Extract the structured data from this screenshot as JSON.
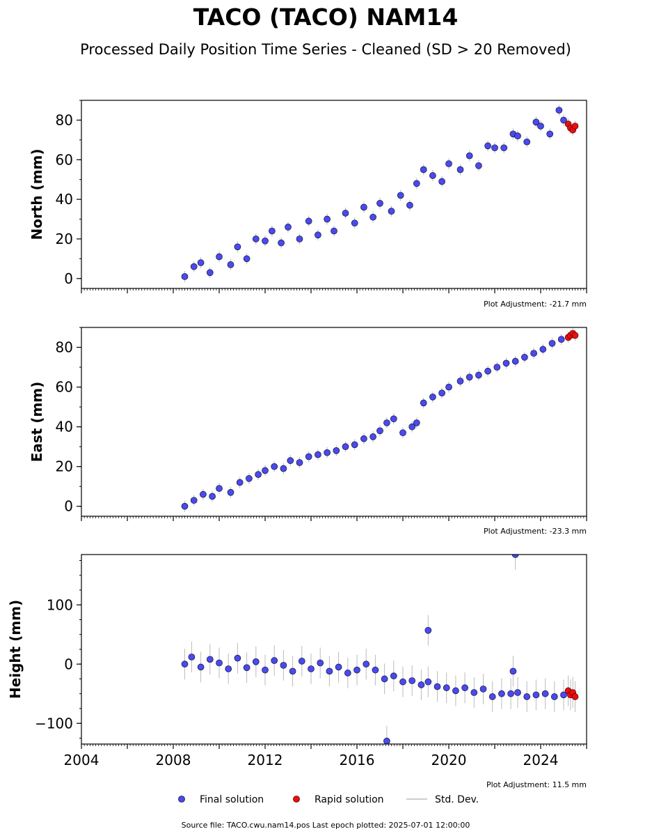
{
  "title": "TACO (TACO) NAM14",
  "subtitle": "Processed Daily Position Time Series - Cleaned (SD > 20 Removed)",
  "source_line": "Source file: TACO.cwu.nam14.pos  Last epoch plotted: 2025-07-01 12:00:00",
  "legend": {
    "final": "Final solution",
    "rapid": "Rapid solution",
    "std": "Std. Dev."
  },
  "colors": {
    "final": "#4a4aef",
    "final_edge": "#111133",
    "rapid": "#e81010",
    "std": "#bbbbbb"
  },
  "chart_data": [
    {
      "type": "scatter",
      "ylabel": "North (mm)",
      "xlim": [
        2004.0,
        2026.0
      ],
      "ylim": [
        -5,
        90
      ],
      "yticks": [
        0,
        20,
        40,
        60,
        80
      ],
      "x_tick_labels_shown": false,
      "adjustment_label": "Plot Adjustment: -21.7 mm",
      "series": [
        {
          "name": "Final solution",
          "x": [
            2008.5,
            2008.9,
            2009.2,
            2009.6,
            2010.0,
            2010.5,
            2010.8,
            2011.2,
            2011.6,
            2012.0,
            2012.3,
            2012.7,
            2013.0,
            2013.5,
            2013.9,
            2014.3,
            2014.7,
            2015.0,
            2015.5,
            2015.9,
            2016.3,
            2016.7,
            2017.0,
            2017.5,
            2017.9,
            2018.3,
            2018.6,
            2018.9,
            2019.3,
            2019.7,
            2020.0,
            2020.5,
            2020.9,
            2021.3,
            2021.7,
            2022.0,
            2022.4,
            2022.8,
            2023.0,
            2023.4,
            2023.8,
            2024.0,
            2024.4,
            2024.8,
            2025.0
          ],
          "y": [
            1,
            6,
            8,
            3,
            11,
            7,
            16,
            10,
            20,
            19,
            24,
            18,
            26,
            20,
            29,
            22,
            30,
            24,
            33,
            28,
            36,
            31,
            38,
            34,
            42,
            37,
            48,
            55,
            52,
            49,
            58,
            55,
            62,
            57,
            67,
            66,
            66,
            73,
            72,
            69,
            79,
            77,
            73,
            85,
            80
          ]
        },
        {
          "name": "Rapid solution",
          "x": [
            2025.2,
            2025.3,
            2025.4,
            2025.5
          ],
          "y": [
            78,
            76,
            75,
            77
          ]
        }
      ]
    },
    {
      "type": "scatter",
      "ylabel": "East (mm)",
      "xlim": [
        2004.0,
        2026.0
      ],
      "ylim": [
        -5,
        90
      ],
      "yticks": [
        0,
        20,
        40,
        60,
        80
      ],
      "x_tick_labels_shown": false,
      "adjustment_label": "Plot Adjustment: -23.3 mm",
      "series": [
        {
          "name": "Final solution",
          "x": [
            2008.5,
            2008.9,
            2009.3,
            2009.7,
            2010.0,
            2010.5,
            2010.9,
            2011.3,
            2011.7,
            2012.0,
            2012.4,
            2012.8,
            2013.1,
            2013.5,
            2013.9,
            2014.3,
            2014.7,
            2015.1,
            2015.5,
            2015.9,
            2016.3,
            2016.7,
            2017.0,
            2017.3,
            2017.6,
            2018.0,
            2018.4,
            2018.6,
            2018.9,
            2019.3,
            2019.7,
            2020.0,
            2020.5,
            2020.9,
            2021.3,
            2021.7,
            2022.1,
            2022.5,
            2022.9,
            2023.3,
            2023.7,
            2024.1,
            2024.5,
            2024.9
          ],
          "y": [
            0,
            3,
            6,
            5,
            9,
            7,
            12,
            14,
            16,
            18,
            20,
            19,
            23,
            22,
            25,
            26,
            27,
            28,
            30,
            31,
            34,
            35,
            38,
            42,
            44,
            37,
            40,
            42,
            52,
            55,
            57,
            60,
            63,
            65,
            66,
            68,
            70,
            72,
            73,
            75,
            77,
            79,
            82,
            84
          ]
        },
        {
          "name": "Rapid solution",
          "x": [
            2025.2,
            2025.3,
            2025.4,
            2025.5
          ],
          "y": [
            85,
            86,
            87,
            86
          ]
        }
      ]
    },
    {
      "type": "scatter",
      "ylabel": "Height (mm)",
      "xlim": [
        2004.0,
        2026.0
      ],
      "ylim": [
        -135,
        185
      ],
      "yticks": [
        -100,
        0,
        100
      ],
      "ytick_labels": [
        "−100",
        "0",
        "100"
      ],
      "xticks": [
        2004,
        2008,
        2012,
        2016,
        2020,
        2024
      ],
      "adjustment_label": "Plot Adjustment: 11.5 mm",
      "series": [
        {
          "name": "Final solution",
          "x": [
            2008.5,
            2008.8,
            2009.2,
            2009.6,
            2010.0,
            2010.4,
            2010.8,
            2011.2,
            2011.6,
            2012.0,
            2012.4,
            2012.8,
            2013.2,
            2013.6,
            2014.0,
            2014.4,
            2014.8,
            2015.2,
            2015.6,
            2016.0,
            2016.4,
            2016.8,
            2017.2,
            2017.6,
            2018.0,
            2018.4,
            2018.8,
            2019.1,
            2019.5,
            2019.9,
            2020.3,
            2020.7,
            2021.1,
            2021.5,
            2021.9,
            2022.3,
            2022.7,
            2023.0,
            2023.4,
            2023.8,
            2024.2,
            2024.6,
            2025.0,
            2019.1,
            2022.9,
            2017.3,
            2022.8
          ],
          "y": [
            0,
            12,
            -5,
            8,
            2,
            -8,
            10,
            -6,
            4,
            -10,
            6,
            -2,
            -12,
            5,
            -8,
            2,
            -12,
            -5,
            -15,
            -10,
            0,
            -10,
            -25,
            -20,
            -30,
            -28,
            -35,
            -30,
            -38,
            -40,
            -45,
            -40,
            -48,
            -42,
            -55,
            -50,
            -50,
            -48,
            -55,
            -52,
            -50,
            -55,
            -52,
            57,
            185,
            -130,
            -12
          ]
        },
        {
          "name": "Rapid solution",
          "x": [
            2025.2,
            2025.3,
            2025.4,
            2025.5
          ],
          "y": [
            -45,
            -52,
            -48,
            -55
          ]
        }
      ]
    }
  ]
}
